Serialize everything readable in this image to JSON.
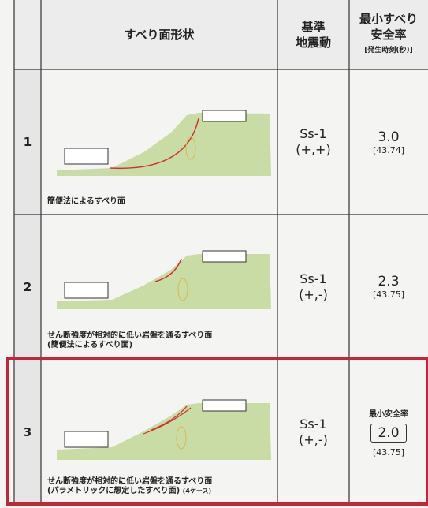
{
  "header": {
    "shape": "すべり面形状",
    "motion": [
      "基準",
      "地震動"
    ],
    "factor": [
      "最小すべり",
      "安全率"
    ],
    "factor_sub": "[発生時刻(秒)]"
  },
  "rows": [
    {
      "no": "1",
      "caption": [
        "簡便法によるすべり面"
      ],
      "motion": "Ss-1",
      "sign": "(+,+)",
      "factor": "3.0",
      "time": "[43.74]"
    },
    {
      "no": "2",
      "caption": [
        "せん断強度が相対的に低い岩盤を通るすべり面",
        "(簡便法によるすべり面)"
      ],
      "motion": "Ss-1",
      "sign": "(+,-)",
      "factor": "2.3",
      "time": "[43.75]"
    },
    {
      "no": "3",
      "caption": [
        "せん断強度が相対的に低い岩盤を通るすべり面",
        "(パラメトリックに想定したすべり面)",
        "(4ケース)"
      ],
      "motion": "Ss-1",
      "sign": "(+,-)",
      "min_label": "最小安全率",
      "factor": "2.0",
      "time": "[43.75]"
    }
  ]
}
